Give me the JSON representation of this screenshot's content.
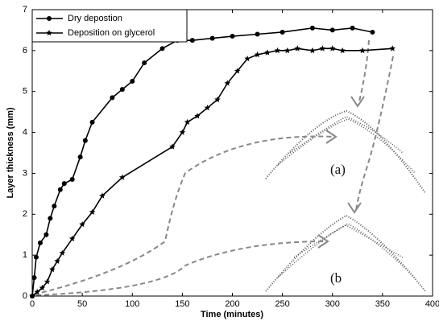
{
  "chart_data": {
    "type": "line",
    "x_label": "Time (minutes)",
    "y_label": "Layer thickness (mm)",
    "xlim": [
      0,
      400
    ],
    "xticks": [
      0,
      50,
      100,
      150,
      200,
      250,
      300,
      350,
      400
    ],
    "ylim": [
      0,
      7
    ],
    "yticks": [
      0,
      1,
      2,
      3,
      4,
      5,
      6,
      7
    ],
    "legend": "upper left",
    "annotations": [
      "(a)",
      "(b"
    ],
    "series": [
      {
        "name": "Dry depostion",
        "color": "#000000",
        "marker": "circle",
        "x": [
          0,
          2,
          4,
          8,
          14,
          18,
          22,
          28,
          32,
          40,
          48,
          53,
          60,
          80,
          90,
          100,
          112,
          130,
          145,
          160,
          180,
          200,
          225,
          250,
          280,
          300,
          320,
          340
        ],
        "values": [
          0,
          0.45,
          0.95,
          1.3,
          1.5,
          1.9,
          2.2,
          2.6,
          2.75,
          2.85,
          3.4,
          3.8,
          4.25,
          4.85,
          5.05,
          5.25,
          5.7,
          6.05,
          6.25,
          6.25,
          6.3,
          6.35,
          6.4,
          6.45,
          6.55,
          6.5,
          6.55,
          6.45
        ]
      },
      {
        "name": "Deposition on glycerol",
        "color": "#000000",
        "marker": "star",
        "x": [
          0,
          5,
          10,
          15,
          20,
          25,
          30,
          40,
          50,
          60,
          70,
          90,
          140,
          150,
          155,
          165,
          175,
          185,
          195,
          205,
          215,
          225,
          235,
          245,
          255,
          265,
          280,
          290,
          300,
          310,
          330,
          360
        ],
        "values": [
          0,
          0.1,
          0.2,
          0.35,
          0.65,
          0.85,
          1.05,
          1.4,
          1.75,
          2.05,
          2.45,
          2.9,
          3.65,
          4.0,
          4.25,
          4.4,
          4.6,
          4.8,
          5.2,
          5.5,
          5.8,
          5.9,
          5.95,
          6.0,
          6.0,
          6.05,
          6.0,
          6.05,
          6.05,
          6.0,
          6.0,
          6.05
        ]
      }
    ]
  }
}
